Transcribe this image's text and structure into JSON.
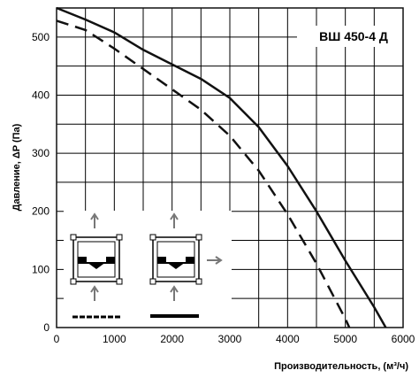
{
  "chart_data": {
    "type": "line",
    "title": "ВШ 450-4 Д",
    "xlabel": "Производительность, (м³/ч)",
    "ylabel": "Давление, ΔP (Па)",
    "xlim": [
      0,
      6000
    ],
    "ylim": [
      0,
      550
    ],
    "xticks": [
      "0",
      "1000",
      "2000",
      "3000",
      "4000",
      "5000",
      "6000"
    ],
    "yticks": [
      "0",
      "100",
      "200",
      "300",
      "400",
      "500"
    ],
    "grid": true,
    "series": [
      {
        "style": "solid",
        "x": [
          0,
          500,
          1000,
          1500,
          2000,
          2500,
          3000,
          3500,
          4000,
          4500,
          5000,
          5500,
          5700
        ],
        "y": [
          550,
          530,
          508,
          478,
          453,
          428,
          395,
          345,
          278,
          200,
          115,
          35,
          0
        ]
      },
      {
        "style": "dashed",
        "x": [
          0,
          500,
          1000,
          1500,
          2000,
          2500,
          3000,
          3500,
          4000,
          4500,
          5000,
          5070
        ],
        "y": [
          528,
          512,
          480,
          445,
          410,
          375,
          330,
          270,
          195,
          110,
          15,
          0
        ]
      }
    ]
  },
  "colors": {
    "line": "#111111",
    "grid": "#000000",
    "frame": "#111111"
  }
}
